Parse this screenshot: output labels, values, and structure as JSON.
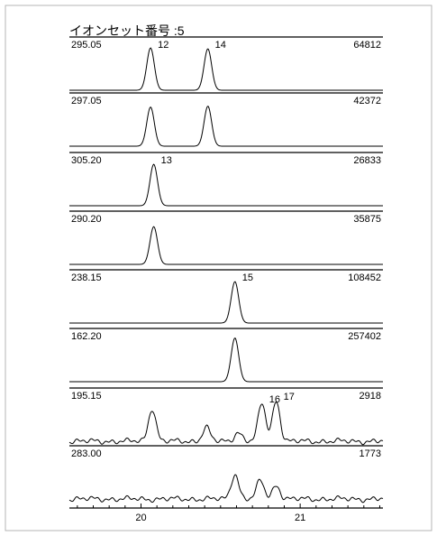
{
  "title": "イオンセット番号 :5",
  "chart_data": {
    "type": "line",
    "title": "イオンセット番号 :5",
    "x_range": [
      19.55,
      21.52
    ],
    "x_ticks": [
      20,
      21
    ],
    "grid": false,
    "panels": [
      {
        "mz": "295.05",
        "max_intensity": "64812",
        "peaks": [
          {
            "rt": 20.06,
            "h": 0.92,
            "label": "12"
          },
          {
            "rt": 20.42,
            "h": 0.9,
            "label": "14"
          }
        ]
      },
      {
        "mz": "297.05",
        "max_intensity": "42372",
        "peaks": [
          {
            "rt": 20.06,
            "h": 0.85,
            "label": ""
          },
          {
            "rt": 20.42,
            "h": 0.87,
            "label": ""
          }
        ]
      },
      {
        "mz": "305.20",
        "max_intensity": "26833",
        "peaks": [
          {
            "rt": 20.08,
            "h": 0.9,
            "label": "13"
          }
        ]
      },
      {
        "mz": "290.20",
        "max_intensity": "35875",
        "peaks": [
          {
            "rt": 20.08,
            "h": 0.82,
            "label": ""
          }
        ]
      },
      {
        "mz": "238.15",
        "max_intensity": "108452",
        "peaks": [
          {
            "rt": 20.59,
            "h": 0.9,
            "label": "15"
          }
        ]
      },
      {
        "mz": "162.20",
        "max_intensity": "257402",
        "peaks": [
          {
            "rt": 20.59,
            "h": 0.95,
            "label": ""
          }
        ]
      },
      {
        "mz": "195.15",
        "max_intensity": "2918",
        "peaks": [
          {
            "rt": 20.07,
            "h": 0.72,
            "label": ""
          },
          {
            "rt": 20.41,
            "h": 0.3,
            "label": ""
          },
          {
            "rt": 20.61,
            "h": 0.2,
            "label": ""
          },
          {
            "rt": 20.76,
            "h": 0.82,
            "label": "16"
          },
          {
            "rt": 20.85,
            "h": 0.88,
            "label": "17"
          }
        ]
      },
      {
        "mz": "283.00",
        "max_intensity": "1773",
        "peaks": [
          {
            "rt": 20.59,
            "h": 0.55,
            "label": ""
          },
          {
            "rt": 20.75,
            "h": 0.4,
            "label": ""
          },
          {
            "rt": 20.85,
            "h": 0.3,
            "label": ""
          }
        ]
      }
    ]
  }
}
